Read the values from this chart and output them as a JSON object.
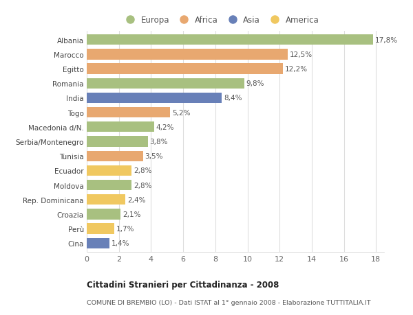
{
  "countries": [
    "Albania",
    "Marocco",
    "Egitto",
    "Romania",
    "India",
    "Togo",
    "Macedonia d/N.",
    "Serbia/Montenegro",
    "Tunisia",
    "Ecuador",
    "Moldova",
    "Rep. Dominicana",
    "Croazia",
    "Perù",
    "Cina"
  ],
  "values": [
    17.8,
    12.5,
    12.2,
    9.8,
    8.4,
    5.2,
    4.2,
    3.8,
    3.5,
    2.8,
    2.8,
    2.4,
    2.1,
    1.7,
    1.4
  ],
  "labels": [
    "17,8%",
    "12,5%",
    "12,2%",
    "9,8%",
    "8,4%",
    "5,2%",
    "4,2%",
    "3,8%",
    "3,5%",
    "2,8%",
    "2,8%",
    "2,4%",
    "2,1%",
    "1,7%",
    "1,4%"
  ],
  "continents": [
    "Europa",
    "Africa",
    "Africa",
    "Europa",
    "Asia",
    "Africa",
    "Europa",
    "Europa",
    "Africa",
    "America",
    "Europa",
    "America",
    "Europa",
    "America",
    "Asia"
  ],
  "colors": {
    "Europa": "#a8c080",
    "Africa": "#e8a870",
    "Asia": "#6880b8",
    "America": "#f0c860"
  },
  "title": "Cittadini Stranieri per Cittadinanza - 2008",
  "subtitle": "COMUNE DI BREMBIO (LO) - Dati ISTAT al 1° gennaio 2008 - Elaborazione TUTTITALIA.IT",
  "xlim": [
    0,
    18.5
  ],
  "xticks": [
    0,
    2,
    4,
    6,
    8,
    10,
    12,
    14,
    16,
    18
  ],
  "background_color": "#ffffff",
  "grid_color": "#dddddd",
  "bar_height": 0.72,
  "label_fontsize": 7.5,
  "ytick_fontsize": 7.5
}
